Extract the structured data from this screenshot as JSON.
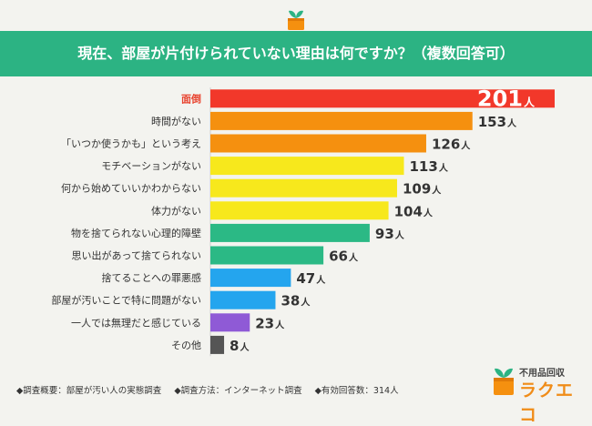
{
  "title": "現在、部屋が片付けられていない理由は何ですか？（複数回答可）",
  "unit": "人",
  "colors": {
    "banner": "#2cb383",
    "red": "#f2382a",
    "orange": "#f5900f",
    "yellow": "#f7e81c",
    "green": "#2bb985",
    "blue": "#24a5ee",
    "purple": "#8f5ad6",
    "gray": "#555555",
    "highlight_text": "#e8432f"
  },
  "chart_data": {
    "type": "bar",
    "orientation": "horizontal",
    "title": "現在、部屋が片付けられていない理由は何ですか？（複数回答可）",
    "categories": [
      "面倒",
      "時間がない",
      "「いつか使うかも」という考え",
      "モチベーションがない",
      "何から始めていいかわからない",
      "体力がない",
      "物を捨てられない心理的障壁",
      "思い出があって捨てられない",
      "捨てることへの罪悪感",
      "部屋が汚いことで特に問題がない",
      "一人では無理だと感じている",
      "その他"
    ],
    "values": [
      201,
      153,
      126,
      113,
      109,
      104,
      93,
      66,
      47,
      38,
      23,
      8
    ],
    "bar_colors": [
      "red",
      "orange",
      "orange",
      "yellow",
      "yellow",
      "yellow",
      "green",
      "green",
      "blue",
      "blue",
      "purple",
      "gray"
    ],
    "unit": "人",
    "grid": false,
    "legend": "none"
  },
  "footer": {
    "overview": "◆調査概要：部屋が汚い人の実態調査",
    "method": "◆調査方法：インターネット調査",
    "responses": "◆有効回答数：314人"
  },
  "brand": {
    "line1": "不用品回収",
    "line2": "ラクエコ"
  }
}
